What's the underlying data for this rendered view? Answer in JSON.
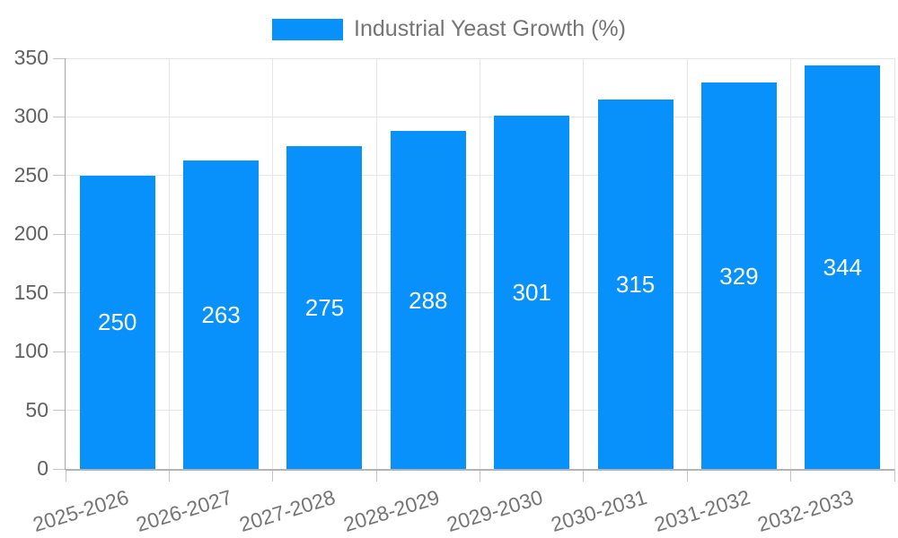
{
  "chart_data": {
    "type": "bar",
    "title": "",
    "legend": {
      "label": "Industrial Yeast Growth (%)",
      "position": "top"
    },
    "categories": [
      "2025-2026",
      "2026-2027",
      "2027-2028",
      "2028-2029",
      "2029-2030",
      "2030-2031",
      "2031-2032",
      "2032-2033"
    ],
    "values": [
      250,
      263,
      275,
      288,
      301,
      315,
      329,
      344
    ],
    "value_labels": [
      "250",
      "263",
      "275",
      "288",
      "301",
      "315",
      "329",
      "344"
    ],
    "yticks": [
      0,
      50,
      100,
      150,
      200,
      250,
      300,
      350
    ],
    "ylim": [
      0,
      350
    ],
    "xlabel": "",
    "ylabel": "",
    "grid": true,
    "value_label_position": "inside-center"
  },
  "colors": {
    "bar": "#0991fb",
    "value_label": "#ffffff",
    "legend_text": "#757575",
    "axis_text": "#616161",
    "x_axis_text": "#757575",
    "gridline": "#e6e6e6",
    "axis_line": "#a6a6a6",
    "baseline": "#b3b3b3",
    "tick": "#c4c4c4",
    "background": "#ffffff"
  }
}
